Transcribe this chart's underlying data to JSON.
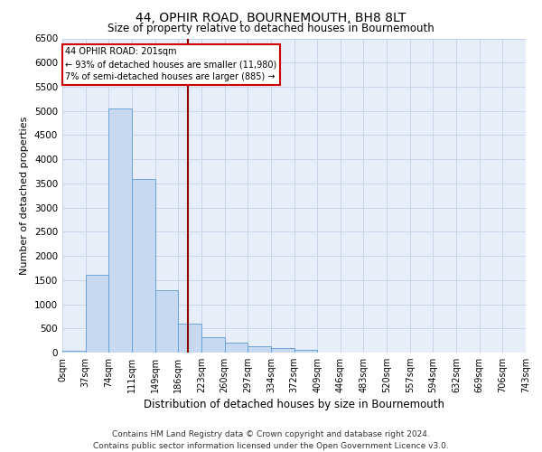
{
  "title": "44, OPHIR ROAD, BOURNEMOUTH, BH8 8LT",
  "subtitle": "Size of property relative to detached houses in Bournemouth",
  "xlabel": "Distribution of detached houses by size in Bournemouth",
  "ylabel": "Number of detached properties",
  "footer_line1": "Contains HM Land Registry data © Crown copyright and database right 2024.",
  "footer_line2": "Contains public sector information licensed under the Open Government Licence v3.0.",
  "bin_labels": [
    "0sqm",
    "37sqm",
    "74sqm",
    "111sqm",
    "149sqm",
    "186sqm",
    "223sqm",
    "260sqm",
    "297sqm",
    "334sqm",
    "372sqm",
    "409sqm",
    "446sqm",
    "483sqm",
    "520sqm",
    "557sqm",
    "594sqm",
    "632sqm",
    "669sqm",
    "706sqm",
    "743sqm"
  ],
  "bar_values": [
    30,
    1600,
    5050,
    3600,
    1300,
    600,
    310,
    200,
    130,
    90,
    50,
    0,
    0,
    0,
    0,
    0,
    0,
    0,
    0,
    0
  ],
  "bar_color": "#c6d9f0",
  "bar_edge_color": "#5b9bd5",
  "grid_color": "#c8d4e8",
  "bg_color": "#e8eef8",
  "property_label": "44 OPHIR ROAD: 201sqm",
  "annotation_line1": "← 93% of detached houses are smaller (11,980)",
  "annotation_line2": "7% of semi-detached houses are larger (885) →",
  "annotation_box_color": "#ffffff",
  "annotation_box_edge": "#cc0000",
  "vline_color": "#8b0000",
  "ylim": [
    0,
    6500
  ],
  "yticks": [
    0,
    500,
    1000,
    1500,
    2000,
    2500,
    3000,
    3500,
    4000,
    4500,
    5000,
    5500,
    6000,
    6500
  ],
  "title_fontsize": 10,
  "subtitle_fontsize": 8.5,
  "ylabel_fontsize": 8,
  "xlabel_fontsize": 8.5,
  "footer_fontsize": 6.5,
  "tick_fontsize": 7.5,
  "xtick_fontsize": 7
}
